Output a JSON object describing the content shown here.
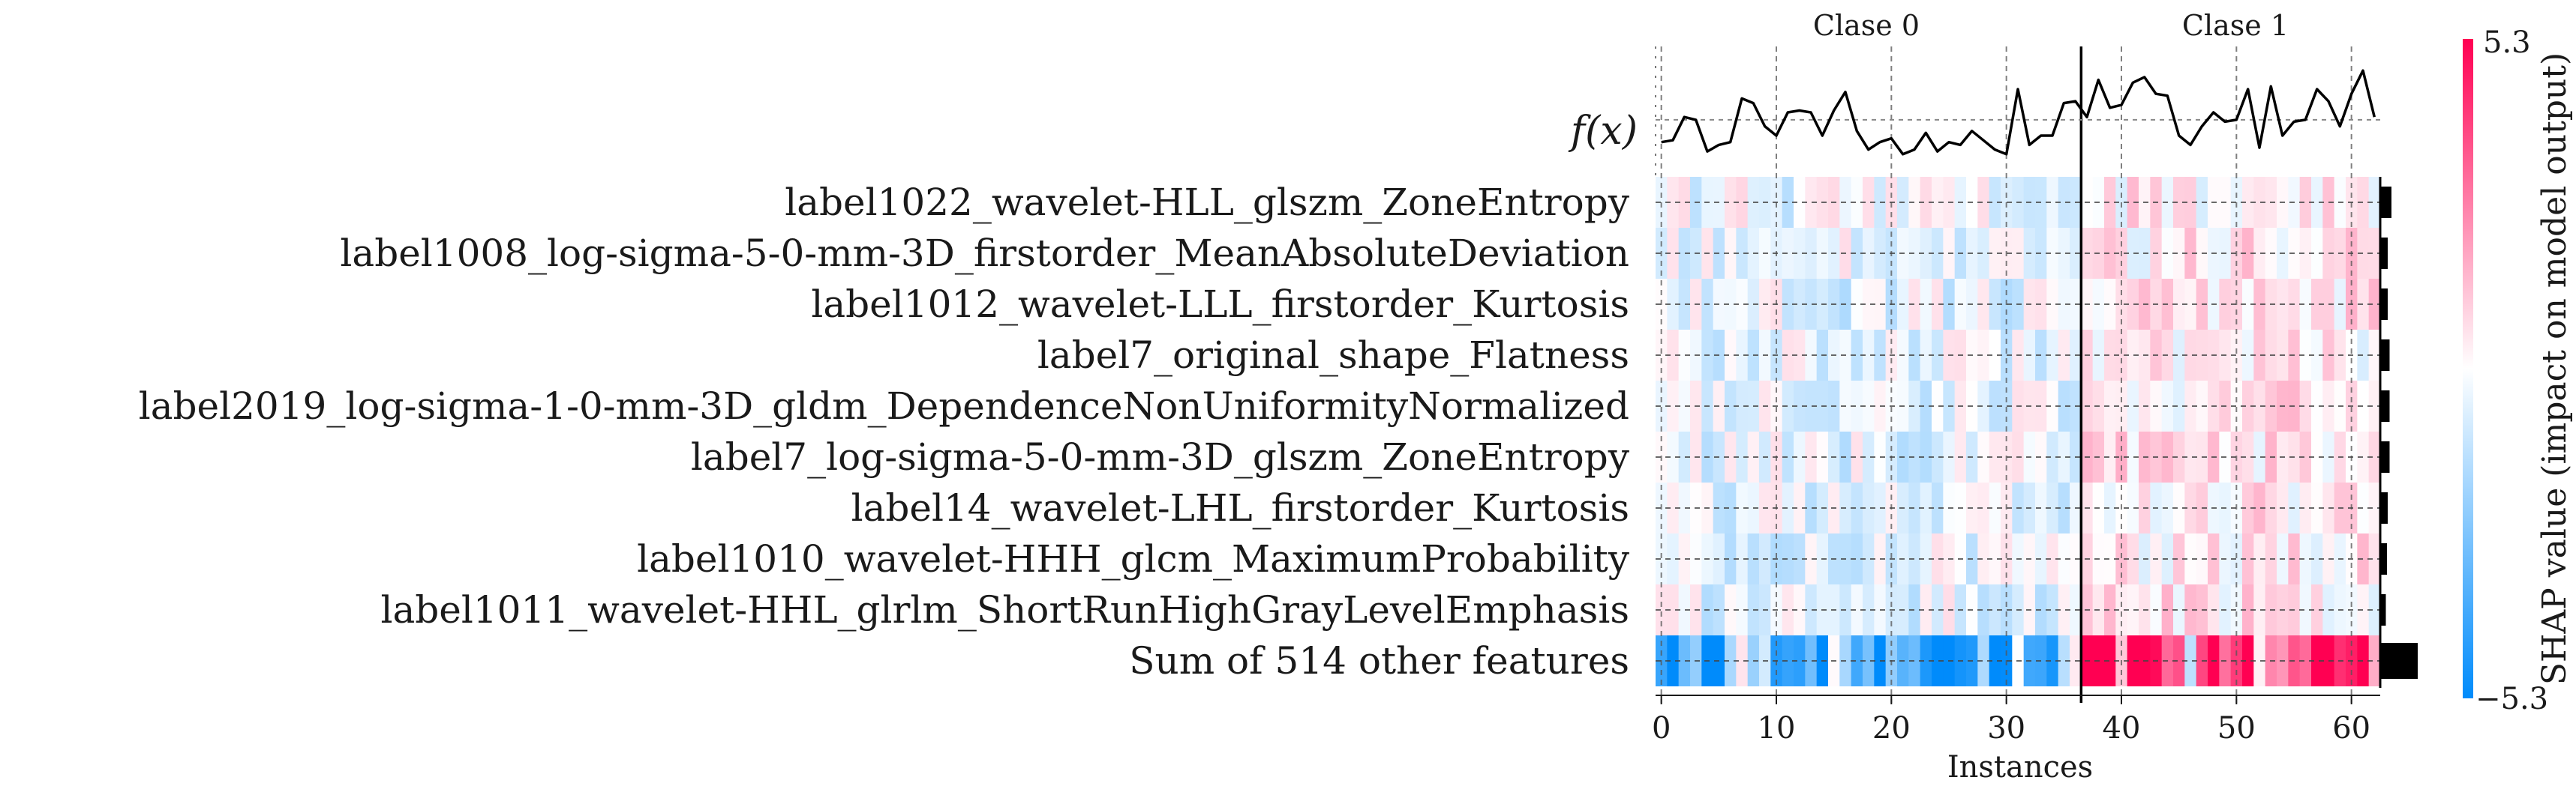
{
  "chart_data": {
    "type": "heatmap",
    "title": "",
    "xlabel": "Instances",
    "fx_label": "f(x)",
    "colorbar_label": "SHAP value (impact on model output)",
    "colorbar_max_label": "5.3",
    "colorbar_min_label": "−5.3",
    "vmin": -5.3,
    "vmax": 5.3,
    "xlim": [
      -0.5,
      62.5
    ],
    "x_ticks": [
      0,
      10,
      20,
      30,
      40,
      50,
      60
    ],
    "class_labels": [
      "Clase 0",
      "Clase 1"
    ],
    "class_boundary": 36.5,
    "vertical_guides": [
      0,
      10,
      20,
      30,
      40,
      50,
      60
    ],
    "n_instances": 63,
    "features": [
      "label1022_wavelet-HLL_glszm_ZoneEntropy",
      "label1008_log-sigma-5-0-mm-3D_firstorder_MeanAbsoluteDeviation",
      "label1012_wavelet-LLL_firstorder_Kurtosis",
      "label7_original_shape_Flatness",
      "label2019_log-sigma-1-0-mm-3D_gldm_DependenceNonUniformityNormalized",
      "label7_log-sigma-5-0-mm-3D_glszm_ZoneEntropy",
      "label14_wavelet-LHL_firstorder_Kurtosis",
      "label1010_wavelet-HHH_glcm_MaximumProbability",
      "label1011_wavelet-HHL_glrlm_ShortRunHighGrayLevelEmphasis",
      "Sum of 514 other features"
    ],
    "fx_values": [
      0.38,
      0.4,
      0.65,
      0.62,
      0.28,
      0.35,
      0.38,
      0.85,
      0.8,
      0.55,
      0.45,
      0.7,
      0.72,
      0.7,
      0.45,
      0.72,
      0.92,
      0.5,
      0.3,
      0.38,
      0.42,
      0.25,
      0.3,
      0.48,
      0.28,
      0.38,
      0.35,
      0.5,
      0.4,
      0.3,
      0.25,
      0.95,
      0.35,
      0.45,
      0.45,
      0.8,
      0.82,
      0.65,
      1.05,
      0.75,
      0.78,
      1.02,
      1.08,
      0.9,
      0.88,
      0.45,
      0.35,
      0.55,
      0.7,
      0.6,
      0.62,
      0.95,
      0.32,
      0.98,
      0.45,
      0.6,
      0.62,
      0.95,
      0.82,
      0.55,
      0.9,
      1.15,
      0.65
    ],
    "feature_importance": [
      0.3,
      0.2,
      0.2,
      0.25,
      0.25,
      0.25,
      0.2,
      0.18,
      0.15,
      1.0
    ]
  }
}
